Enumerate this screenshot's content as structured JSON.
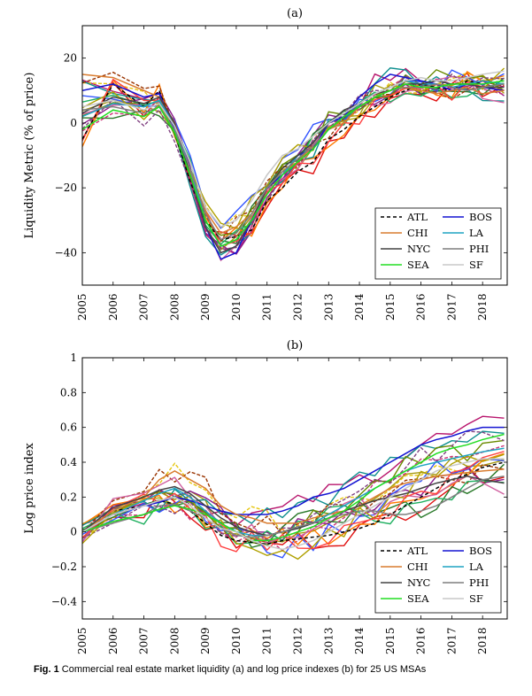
{
  "caption": {
    "label": "Fig. 1",
    "text": "Commercial real estate market liquidity (a) and log price indexes (b) for 25 US MSAs"
  },
  "colors": {
    "ATL": "#000000",
    "BOS": "#1414d2",
    "CHI": "#d97c2f",
    "LA": "#1fa3c2",
    "NYC": "#444444",
    "PHI": "#7f7f7f",
    "SEA": "#22dd22",
    "SF": "#c8c8c8",
    "other": [
      "#e01010",
      "#b8156d",
      "#e6c60f",
      "#a89a10",
      "#8b1a8b",
      "#2a7a2a",
      "#cc3377",
      "#3355ff",
      "#ff7a00",
      "#0f8f8f",
      "#993300",
      "#6a8a00",
      "#d060a0",
      "#20b060",
      "#804080",
      "#b0a000",
      "#ff4040"
    ]
  },
  "chart_data": [
    {
      "id": "a",
      "type": "line",
      "title": "(a)",
      "xlabel": "",
      "ylabel": "Liquidity Metric (% of price)",
      "xlim": [
        2005,
        2018.8
      ],
      "ylim": [
        -50,
        30
      ],
      "xticks": [
        2005,
        2006,
        2007,
        2008,
        2009,
        2010,
        2011,
        2012,
        2013,
        2014,
        2015,
        2016,
        2017,
        2018
      ],
      "yticks": [
        -40,
        -20,
        0,
        20
      ],
      "ytick_labels": [
        "−40",
        "−20",
        "0",
        "20"
      ],
      "legend_location": "lower-right",
      "x": [
        2005,
        2006,
        2007,
        2007.5,
        2008,
        2008.5,
        2009,
        2009.5,
        2010,
        2010.5,
        2011,
        2011.5,
        2012,
        2012.5,
        2013,
        2013.5,
        2014,
        2014.5,
        2015,
        2015.5,
        2016,
        2016.5,
        2017,
        2017.5,
        2018,
        2018.7
      ],
      "series": [
        {
          "name": "ATL",
          "values": [
            -5,
            12,
            5,
            10,
            -3,
            -18,
            -30,
            -36,
            -35,
            -33,
            -24,
            -20,
            -15,
            -12,
            -5,
            -2,
            2,
            5,
            8,
            10,
            12,
            11,
            10,
            13,
            12,
            13
          ]
        },
        {
          "name": "BOS",
          "values": [
            10,
            12,
            8,
            9,
            -2,
            -16,
            -32,
            -42,
            -40,
            -30,
            -20,
            -16,
            -10,
            -8,
            0,
            2,
            8,
            12,
            15,
            14,
            13,
            12,
            10,
            12,
            11,
            10
          ]
        },
        {
          "name": "CHI",
          "values": [
            15,
            14,
            10,
            8,
            0,
            -15,
            -27,
            -34,
            -32,
            -28,
            -20,
            -15,
            -12,
            -7,
            -2,
            0,
            5,
            8,
            10,
            11,
            10,
            9,
            10,
            11,
            9,
            10
          ]
        },
        {
          "name": "LA",
          "values": [
            2,
            6,
            5,
            7,
            -1,
            -14,
            -30,
            -38,
            -36,
            -30,
            -22,
            -16,
            -10,
            -6,
            0,
            3,
            6,
            9,
            11,
            13,
            12,
            12,
            11,
            12,
            13,
            12
          ]
        },
        {
          "name": "NYC",
          "values": [
            3,
            8,
            6,
            8,
            0,
            -16,
            -32,
            -40,
            -38,
            -30,
            -20,
            -14,
            -10,
            -6,
            0,
            4,
            6,
            9,
            10,
            12,
            12,
            13,
            12,
            12,
            11,
            11
          ]
        },
        {
          "name": "PHI",
          "values": [
            4,
            5,
            3,
            5,
            -2,
            -14,
            -28,
            -36,
            -34,
            -28,
            -20,
            -15,
            -11,
            -7,
            -2,
            2,
            5,
            8,
            10,
            11,
            11,
            12,
            11,
            10,
            11,
            12
          ]
        },
        {
          "name": "SEA",
          "values": [
            -2,
            4,
            2,
            5,
            -3,
            -16,
            -30,
            -38,
            -36,
            -30,
            -22,
            -16,
            -12,
            -8,
            -2,
            2,
            5,
            8,
            10,
            12,
            11,
            11,
            12,
            12,
            12,
            13
          ]
        },
        {
          "name": "SF",
          "values": [
            5,
            7,
            4,
            6,
            -1,
            -12,
            -26,
            -32,
            -30,
            -24,
            -16,
            -10,
            -8,
            -4,
            0,
            3,
            6,
            9,
            11,
            13,
            14,
            13,
            13,
            14,
            15,
            16
          ]
        }
      ]
    },
    {
      "id": "b",
      "type": "line",
      "title": "(b)",
      "xlabel": "",
      "ylabel": "Log price index",
      "xlim": [
        2005,
        2018.8
      ],
      "ylim": [
        -0.5,
        1.0
      ],
      "xticks": [
        2005,
        2006,
        2007,
        2008,
        2009,
        2010,
        2011,
        2012,
        2013,
        2014,
        2015,
        2016,
        2017,
        2018
      ],
      "yticks": [
        -0.4,
        -0.2,
        0,
        0.2,
        0.4,
        0.6,
        0.8,
        1
      ],
      "ytick_labels": [
        "−0.4",
        "−0.2",
        "0",
        "0.2",
        "0.4",
        "0.6",
        "0.8",
        "1"
      ],
      "legend_location": "lower-right",
      "x": [
        2005,
        2006,
        2007,
        2007.5,
        2008,
        2008.5,
        2009,
        2009.5,
        2010,
        2010.5,
        2011,
        2011.5,
        2012,
        2012.5,
        2013,
        2013.5,
        2014,
        2014.5,
        2015,
        2015.5,
        2016,
        2016.5,
        2017,
        2017.5,
        2018,
        2018.7
      ],
      "series": [
        {
          "name": "ATL",
          "values": [
            0,
            0.12,
            0.15,
            0.18,
            0.16,
            0.12,
            0.05,
            -0.02,
            -0.05,
            -0.06,
            -0.07,
            -0.05,
            -0.04,
            -0.03,
            -0.02,
            0,
            0.02,
            0.05,
            0.1,
            0.15,
            0.2,
            0.25,
            0.3,
            0.33,
            0.37,
            0.4
          ]
        },
        {
          "name": "BOS",
          "values": [
            0,
            0.1,
            0.15,
            0.17,
            0.2,
            0.18,
            0.15,
            0.12,
            0.1,
            0.1,
            0.1,
            0.12,
            0.15,
            0.2,
            0.22,
            0.25,
            0.3,
            0.35,
            0.4,
            0.45,
            0.5,
            0.53,
            0.55,
            0.58,
            0.6,
            0.6
          ]
        },
        {
          "name": "CHI",
          "values": [
            0,
            0.12,
            0.2,
            0.3,
            0.35,
            0.3,
            0.25,
            0.15,
            0.1,
            0.08,
            0.05,
            0.05,
            0.05,
            0.08,
            0.1,
            0.12,
            0.15,
            0.2,
            0.25,
            0.28,
            0.3,
            0.32,
            0.33,
            0.34,
            0.35,
            0.36
          ]
        },
        {
          "name": "LA",
          "values": [
            0,
            0.1,
            0.18,
            0.22,
            0.25,
            0.2,
            0.12,
            0.05,
            0,
            -0.02,
            -0.02,
            0,
            0.02,
            0.05,
            0.1,
            0.15,
            0.2,
            0.25,
            0.3,
            0.35,
            0.38,
            0.4,
            0.42,
            0.44,
            0.46,
            0.48
          ]
        },
        {
          "name": "NYC",
          "values": [
            0,
            0.14,
            0.2,
            0.24,
            0.26,
            0.22,
            0.15,
            0.08,
            0.03,
            0,
            -0.02,
            0,
            0.02,
            0.05,
            0.08,
            0.12,
            0.15,
            0.18,
            0.2,
            0.22,
            0.25,
            0.28,
            0.3,
            0.32,
            0.3,
            0.28
          ]
        },
        {
          "name": "PHI",
          "values": [
            0,
            0.05,
            0.1,
            0.15,
            0.16,
            0.12,
            0.08,
            0.02,
            -0.02,
            -0.03,
            -0.02,
            0,
            0.03,
            0.05,
            0.08,
            0.1,
            0.12,
            0.12,
            0.1,
            0.1,
            0.12,
            0.15,
            0.2,
            0.25,
            0.3,
            0.32
          ]
        },
        {
          "name": "SEA",
          "values": [
            0,
            0.06,
            0.1,
            0.13,
            0.15,
            0.13,
            0.1,
            0.05,
            0,
            -0.05,
            -0.05,
            -0.03,
            0,
            0.03,
            0.08,
            0.12,
            0.18,
            0.25,
            0.3,
            0.35,
            0.4,
            0.45,
            0.48,
            0.5,
            0.53,
            0.56
          ]
        },
        {
          "name": "SF",
          "values": [
            0,
            0.1,
            0.15,
            0.18,
            0.2,
            0.15,
            0.08,
            0.02,
            0,
            -0.05,
            -0.08,
            -0.1,
            -0.08,
            -0.05,
            0,
            0.05,
            0.1,
            0.15,
            0.2,
            0.25,
            0.3,
            0.35,
            0.38,
            0.4,
            0.42,
            0.42
          ]
        }
      ]
    }
  ]
}
